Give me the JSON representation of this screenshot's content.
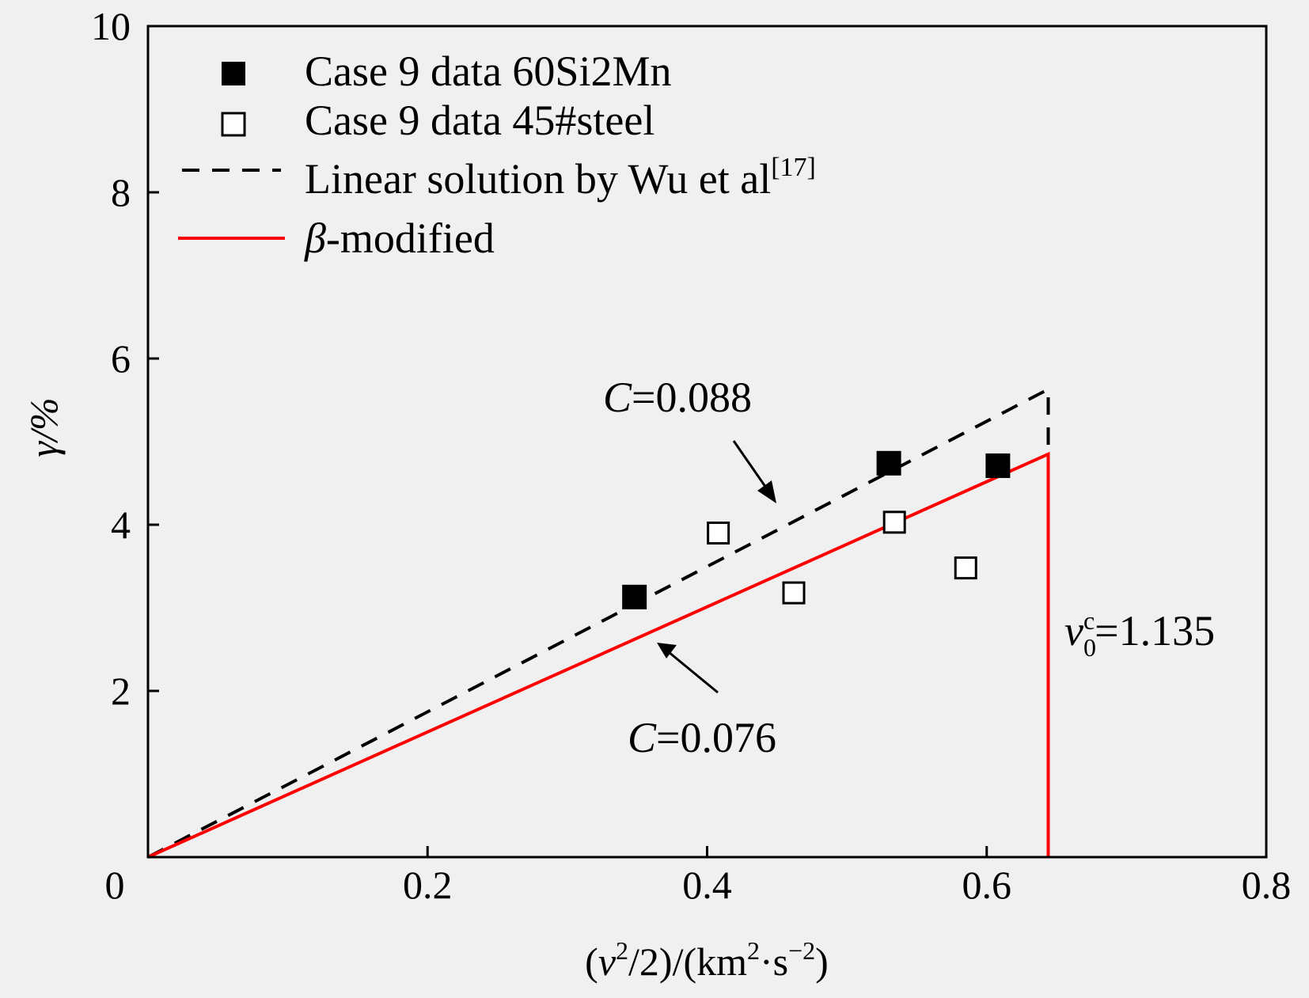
{
  "chart_data": {
    "type": "scatter",
    "xlim": [
      0,
      0.8
    ],
    "ylim": [
      0,
      10
    ],
    "x_ticks": [
      "0",
      "0.2",
      "0.4",
      "0.6",
      "0.8"
    ],
    "y_ticks": [
      "2",
      "4",
      "6",
      "8",
      "10"
    ],
    "x_tick_values": [
      0,
      0.2,
      0.4,
      0.6,
      0.8
    ],
    "y_tick_values": [
      2,
      4,
      6,
      8,
      10
    ],
    "ylabel": "γ/%",
    "xlabel": {
      "p1": "(",
      "v": "v",
      "sup1": "2",
      "p2": "/2)/(km",
      "sup2": "2",
      "p3": "·s",
      "sup3": "−2",
      "p4": ")"
    },
    "series": [
      {
        "name": "Case 9 data 60Si2Mn",
        "kind": "scatter",
        "marker": "filled-square",
        "color": "#000000",
        "points": [
          [
            0.348,
            3.13
          ],
          [
            0.53,
            4.74
          ],
          [
            0.608,
            4.71
          ]
        ]
      },
      {
        "name": "Case 9 data 45#steel",
        "kind": "scatter",
        "marker": "open-square",
        "color": "#000000",
        "points": [
          [
            0.408,
            3.9
          ],
          [
            0.462,
            3.18
          ],
          [
            0.534,
            4.03
          ],
          [
            0.585,
            3.48
          ]
        ]
      },
      {
        "name": "Linear solution by Wu et al",
        "name_sup": "[17]",
        "kind": "line",
        "style": "dashed",
        "color": "#000000",
        "points": [
          [
            0,
            0
          ],
          [
            0.644,
            5.63
          ],
          [
            0.644,
            4.85
          ]
        ]
      },
      {
        "name": "-modified",
        "name_prefix": "β",
        "kind": "line",
        "style": "solid",
        "color": "#ff0000",
        "points": [
          [
            0,
            0
          ],
          [
            0.644,
            4.85
          ],
          [
            0.644,
            0
          ]
        ]
      }
    ],
    "annotations": {
      "c1": {
        "var": "C",
        "text": "=0.088"
      },
      "c2": {
        "var": "C",
        "text": "=0.076"
      },
      "v0": {
        "var": "v",
        "sub": "0",
        "sup": "c",
        "text": "=1.135"
      }
    },
    "legend_position": "top-left",
    "grid": false
  }
}
